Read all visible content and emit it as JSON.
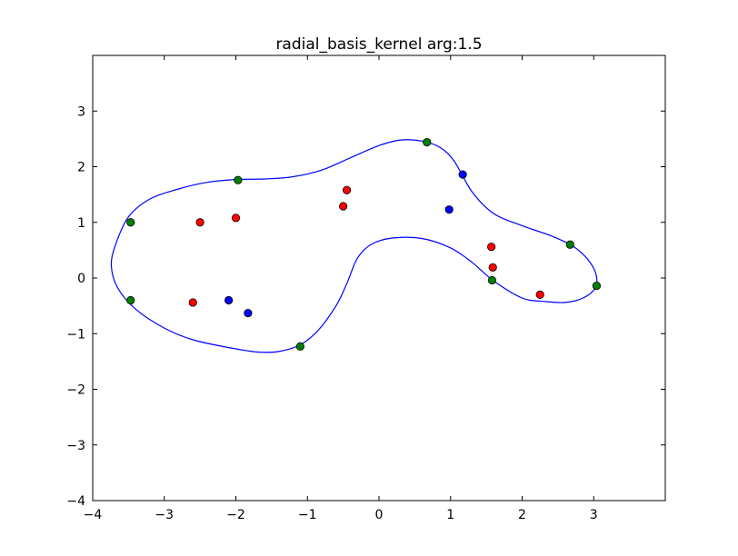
{
  "chart_data": {
    "type": "scatter",
    "title": "radial_basis_kernel arg:1.5",
    "xlabel": "",
    "ylabel": "",
    "xlim": [
      -4,
      4
    ],
    "ylim": [
      -4,
      4
    ],
    "xticks": [
      -4,
      -3,
      -2,
      -1,
      0,
      1,
      2,
      3
    ],
    "yticks": [
      -4,
      -3,
      -2,
      -1,
      0,
      1,
      2,
      3
    ],
    "xtick_labels": [
      "−4",
      "−3",
      "−2",
      "−1",
      "0",
      "1",
      "2",
      "3"
    ],
    "ytick_labels": [
      "−4",
      "−3",
      "−2",
      "−1",
      "0",
      "1",
      "2",
      "3"
    ],
    "grid": false,
    "colors": {
      "red": "#ff0000",
      "blue": "#0000ff",
      "green": "#008000",
      "boundary": "#0000ff"
    },
    "series": [
      {
        "color": "red",
        "points": [
          [
            -2.5,
            1.0
          ],
          [
            -2.0,
            1.08
          ],
          [
            -2.6,
            -0.44
          ],
          [
            -0.5,
            1.29
          ],
          [
            -0.45,
            1.58
          ],
          [
            1.57,
            0.56
          ],
          [
            1.59,
            0.19
          ],
          [
            2.25,
            -0.3
          ]
        ]
      },
      {
        "color": "blue",
        "points": [
          [
            1.17,
            1.86
          ],
          [
            0.98,
            1.23
          ],
          [
            -2.1,
            -0.4
          ],
          [
            -1.83,
            -0.63
          ]
        ]
      },
      {
        "color": "green",
        "points": [
          [
            -3.47,
            1.0
          ],
          [
            -3.47,
            -0.4
          ],
          [
            -1.97,
            1.76
          ],
          [
            0.67,
            2.44
          ],
          [
            -1.1,
            -1.23
          ],
          [
            1.58,
            -0.04
          ],
          [
            2.67,
            0.6
          ],
          [
            3.04,
            -0.14
          ]
        ]
      }
    ],
    "boundary": [
      [
        -3.5,
        1.1
      ],
      [
        -3.2,
        1.42
      ],
      [
        -2.8,
        1.6
      ],
      [
        -2.4,
        1.72
      ],
      [
        -2.0,
        1.77
      ],
      [
        -1.6,
        1.78
      ],
      [
        -1.2,
        1.82
      ],
      [
        -0.8,
        1.94
      ],
      [
        -0.4,
        2.16
      ],
      [
        0.0,
        2.38
      ],
      [
        0.3,
        2.48
      ],
      [
        0.6,
        2.46
      ],
      [
        0.85,
        2.35
      ],
      [
        1.05,
        2.1
      ],
      [
        1.3,
        1.55
      ],
      [
        1.6,
        1.16
      ],
      [
        2.0,
        0.94
      ],
      [
        2.4,
        0.76
      ],
      [
        2.7,
        0.58
      ],
      [
        2.9,
        0.36
      ],
      [
        3.03,
        0.08
      ],
      [
        3.02,
        -0.18
      ],
      [
        2.85,
        -0.36
      ],
      [
        2.6,
        -0.44
      ],
      [
        2.3,
        -0.42
      ],
      [
        2.0,
        -0.36
      ],
      [
        1.6,
        -0.05
      ],
      [
        1.3,
        0.28
      ],
      [
        1.0,
        0.54
      ],
      [
        0.6,
        0.71
      ],
      [
        0.2,
        0.72
      ],
      [
        -0.1,
        0.61
      ],
      [
        -0.3,
        0.36
      ],
      [
        -0.45,
        -0.1
      ],
      [
        -0.6,
        -0.5
      ],
      [
        -0.85,
        -0.94
      ],
      [
        -1.1,
        -1.2
      ],
      [
        -1.4,
        -1.32
      ],
      [
        -1.7,
        -1.33
      ],
      [
        -2.1,
        -1.25
      ],
      [
        -2.6,
        -1.11
      ],
      [
        -3.0,
        -0.9
      ],
      [
        -3.4,
        -0.56
      ],
      [
        -3.65,
        -0.18
      ],
      [
        -3.74,
        0.22
      ],
      [
        -3.68,
        0.6
      ]
    ]
  }
}
